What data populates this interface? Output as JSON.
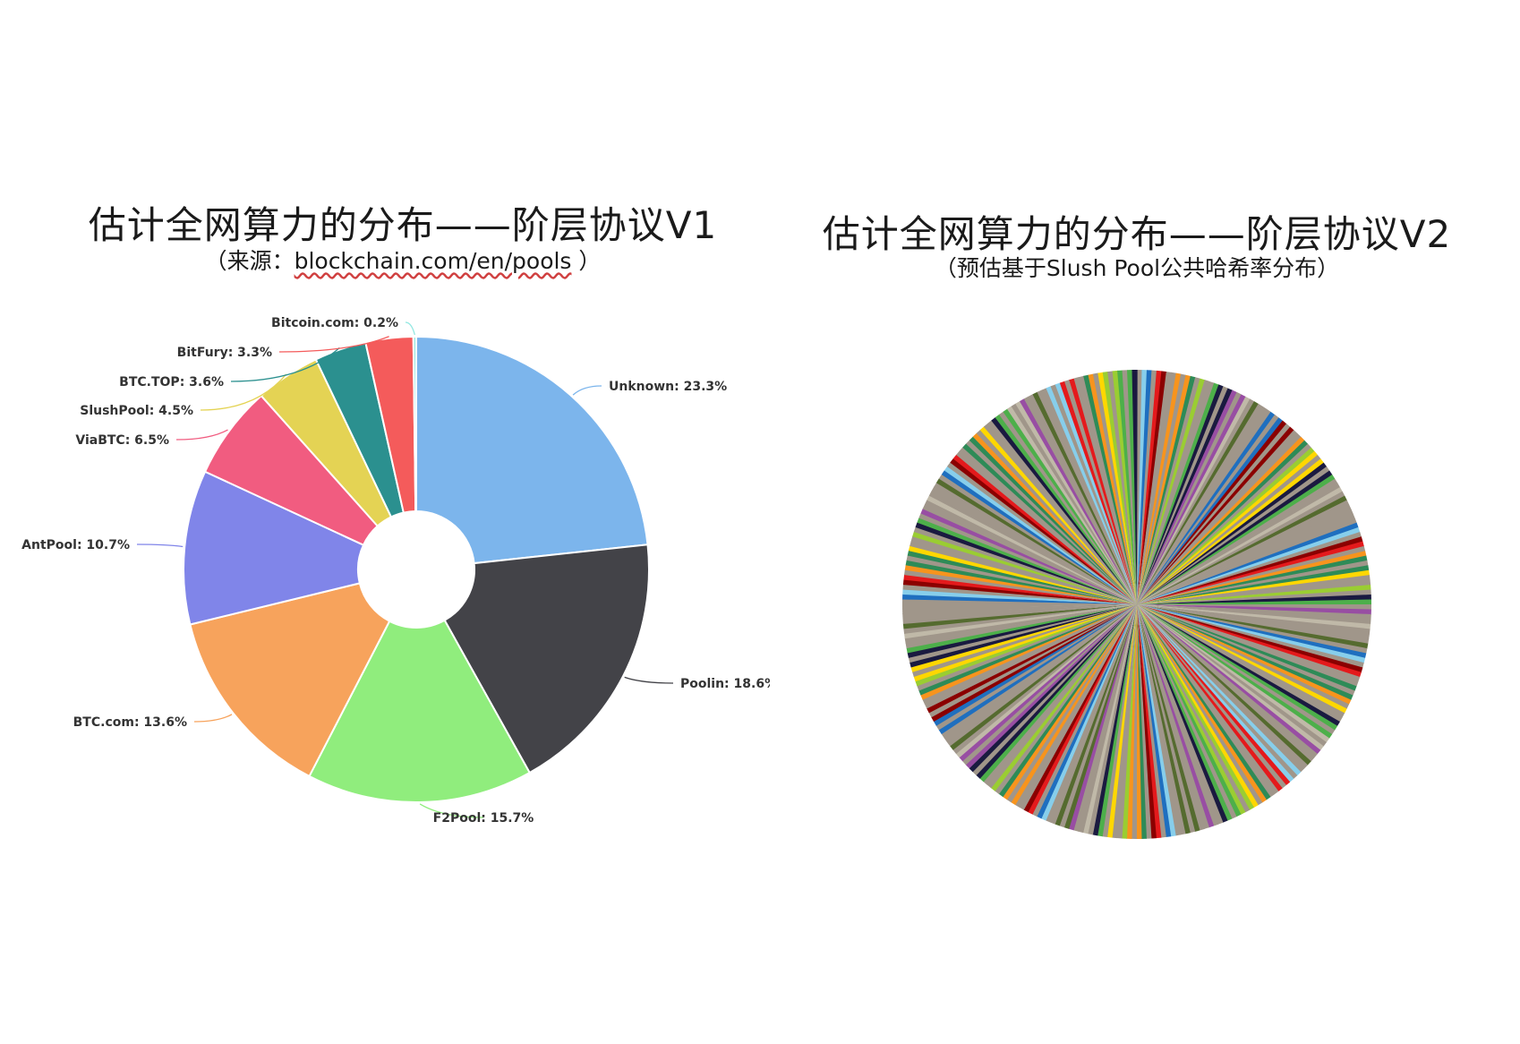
{
  "left": {
    "title": "估计全网算力的分布——阶层协议V1",
    "subtitle_prefix": "（来源：",
    "subtitle_link": "blockchain.com/en/pools",
    "subtitle_suffix": " ）"
  },
  "right": {
    "title": "估计全网算力的分布——阶层协议V2",
    "subtitle": "（预估基于Slush Pool公共哈希率分布）"
  },
  "chart_data": [
    {
      "type": "pie",
      "donut": true,
      "slices": [
        {
          "label": "Unknown: 23.3%",
          "name": "Unknown",
          "value": 23.3,
          "color": "#7cb5ec"
        },
        {
          "label": "Poolin: 18.6%",
          "name": "Poolin",
          "value": 18.6,
          "color": "#434348"
        },
        {
          "label": "F2Pool: 15.7%",
          "name": "F2Pool",
          "value": 15.7,
          "color": "#90ed7d"
        },
        {
          "label": "BTC.com: 13.6%",
          "name": "BTC.com",
          "value": 13.6,
          "color": "#f7a35c"
        },
        {
          "label": "AntPool: 10.7%",
          "name": "AntPool",
          "value": 10.7,
          "color": "#8085e9"
        },
        {
          "label": "ViaBTC: 6.5%",
          "name": "ViaBTC",
          "value": 6.5,
          "color": "#f15c80"
        },
        {
          "label": "SlushPool: 4.5%",
          "name": "SlushPool",
          "value": 4.5,
          "color": "#e4d354"
        },
        {
          "label": "BTC.TOP: 3.6%",
          "name": "BTC.TOP",
          "value": 3.6,
          "color": "#2b908f"
        },
        {
          "label": "BitFury: 3.3%",
          "name": "BitFury",
          "value": 3.3,
          "color": "#f45b5b"
        },
        {
          "label": "Bitcoin.com: 0.2%",
          "name": "Bitcoin.com",
          "value": 0.2,
          "color": "#91e8e1"
        }
      ]
    },
    {
      "type": "pie",
      "donut": false,
      "description_values": "many hundreds of very small slices of roughly equal share, no labels",
      "slice_count": 300,
      "palette": [
        "#1f6fbf",
        "#e41a1c",
        "#f7941d",
        "#ffd700",
        "#4daf4a",
        "#984ea3",
        "#a0968a",
        "#87ceeb",
        "#8b0000",
        "#2e8b57",
        "#9acd32",
        "#1a1a40",
        "#c0b9a8",
        "#556b2f"
      ]
    }
  ]
}
